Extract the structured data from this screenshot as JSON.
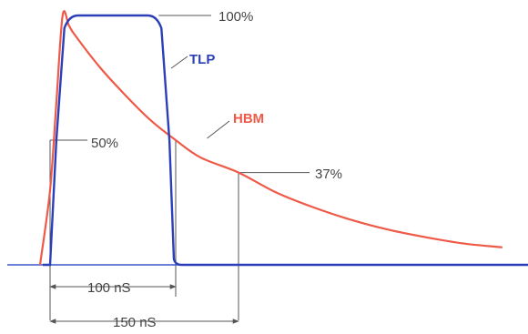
{
  "chart_data": {
    "type": "line",
    "colors": {
      "tlp": "#2b3fb8",
      "hbm": "#ee5a47",
      "annotation": "#555555",
      "axis": "#3a56c8"
    },
    "series": [
      {
        "name": "TLP",
        "x": [
          0,
          5,
          15,
          85,
          95,
          100
        ],
        "y": [
          0,
          0.5,
          1.0,
          1.0,
          0.5,
          0
        ]
      },
      {
        "name": "HBM",
        "x": [
          -8,
          0,
          5,
          10,
          15,
          20,
          40,
          60,
          80,
          100,
          120,
          150,
          180,
          210,
          240,
          270,
          300,
          330,
          360
        ],
        "y": [
          0,
          0.3,
          0.65,
          1.0,
          0.96,
          0.92,
          0.79,
          0.68,
          0.58,
          0.5,
          0.43,
          0.37,
          0.29,
          0.23,
          0.18,
          0.14,
          0.11,
          0.085,
          0.07
        ]
      }
    ],
    "annotations": {
      "level_100": "100%",
      "level_50": "50%",
      "level_37": "37%",
      "width_100": "100 nS",
      "width_150": "150 nS"
    }
  }
}
